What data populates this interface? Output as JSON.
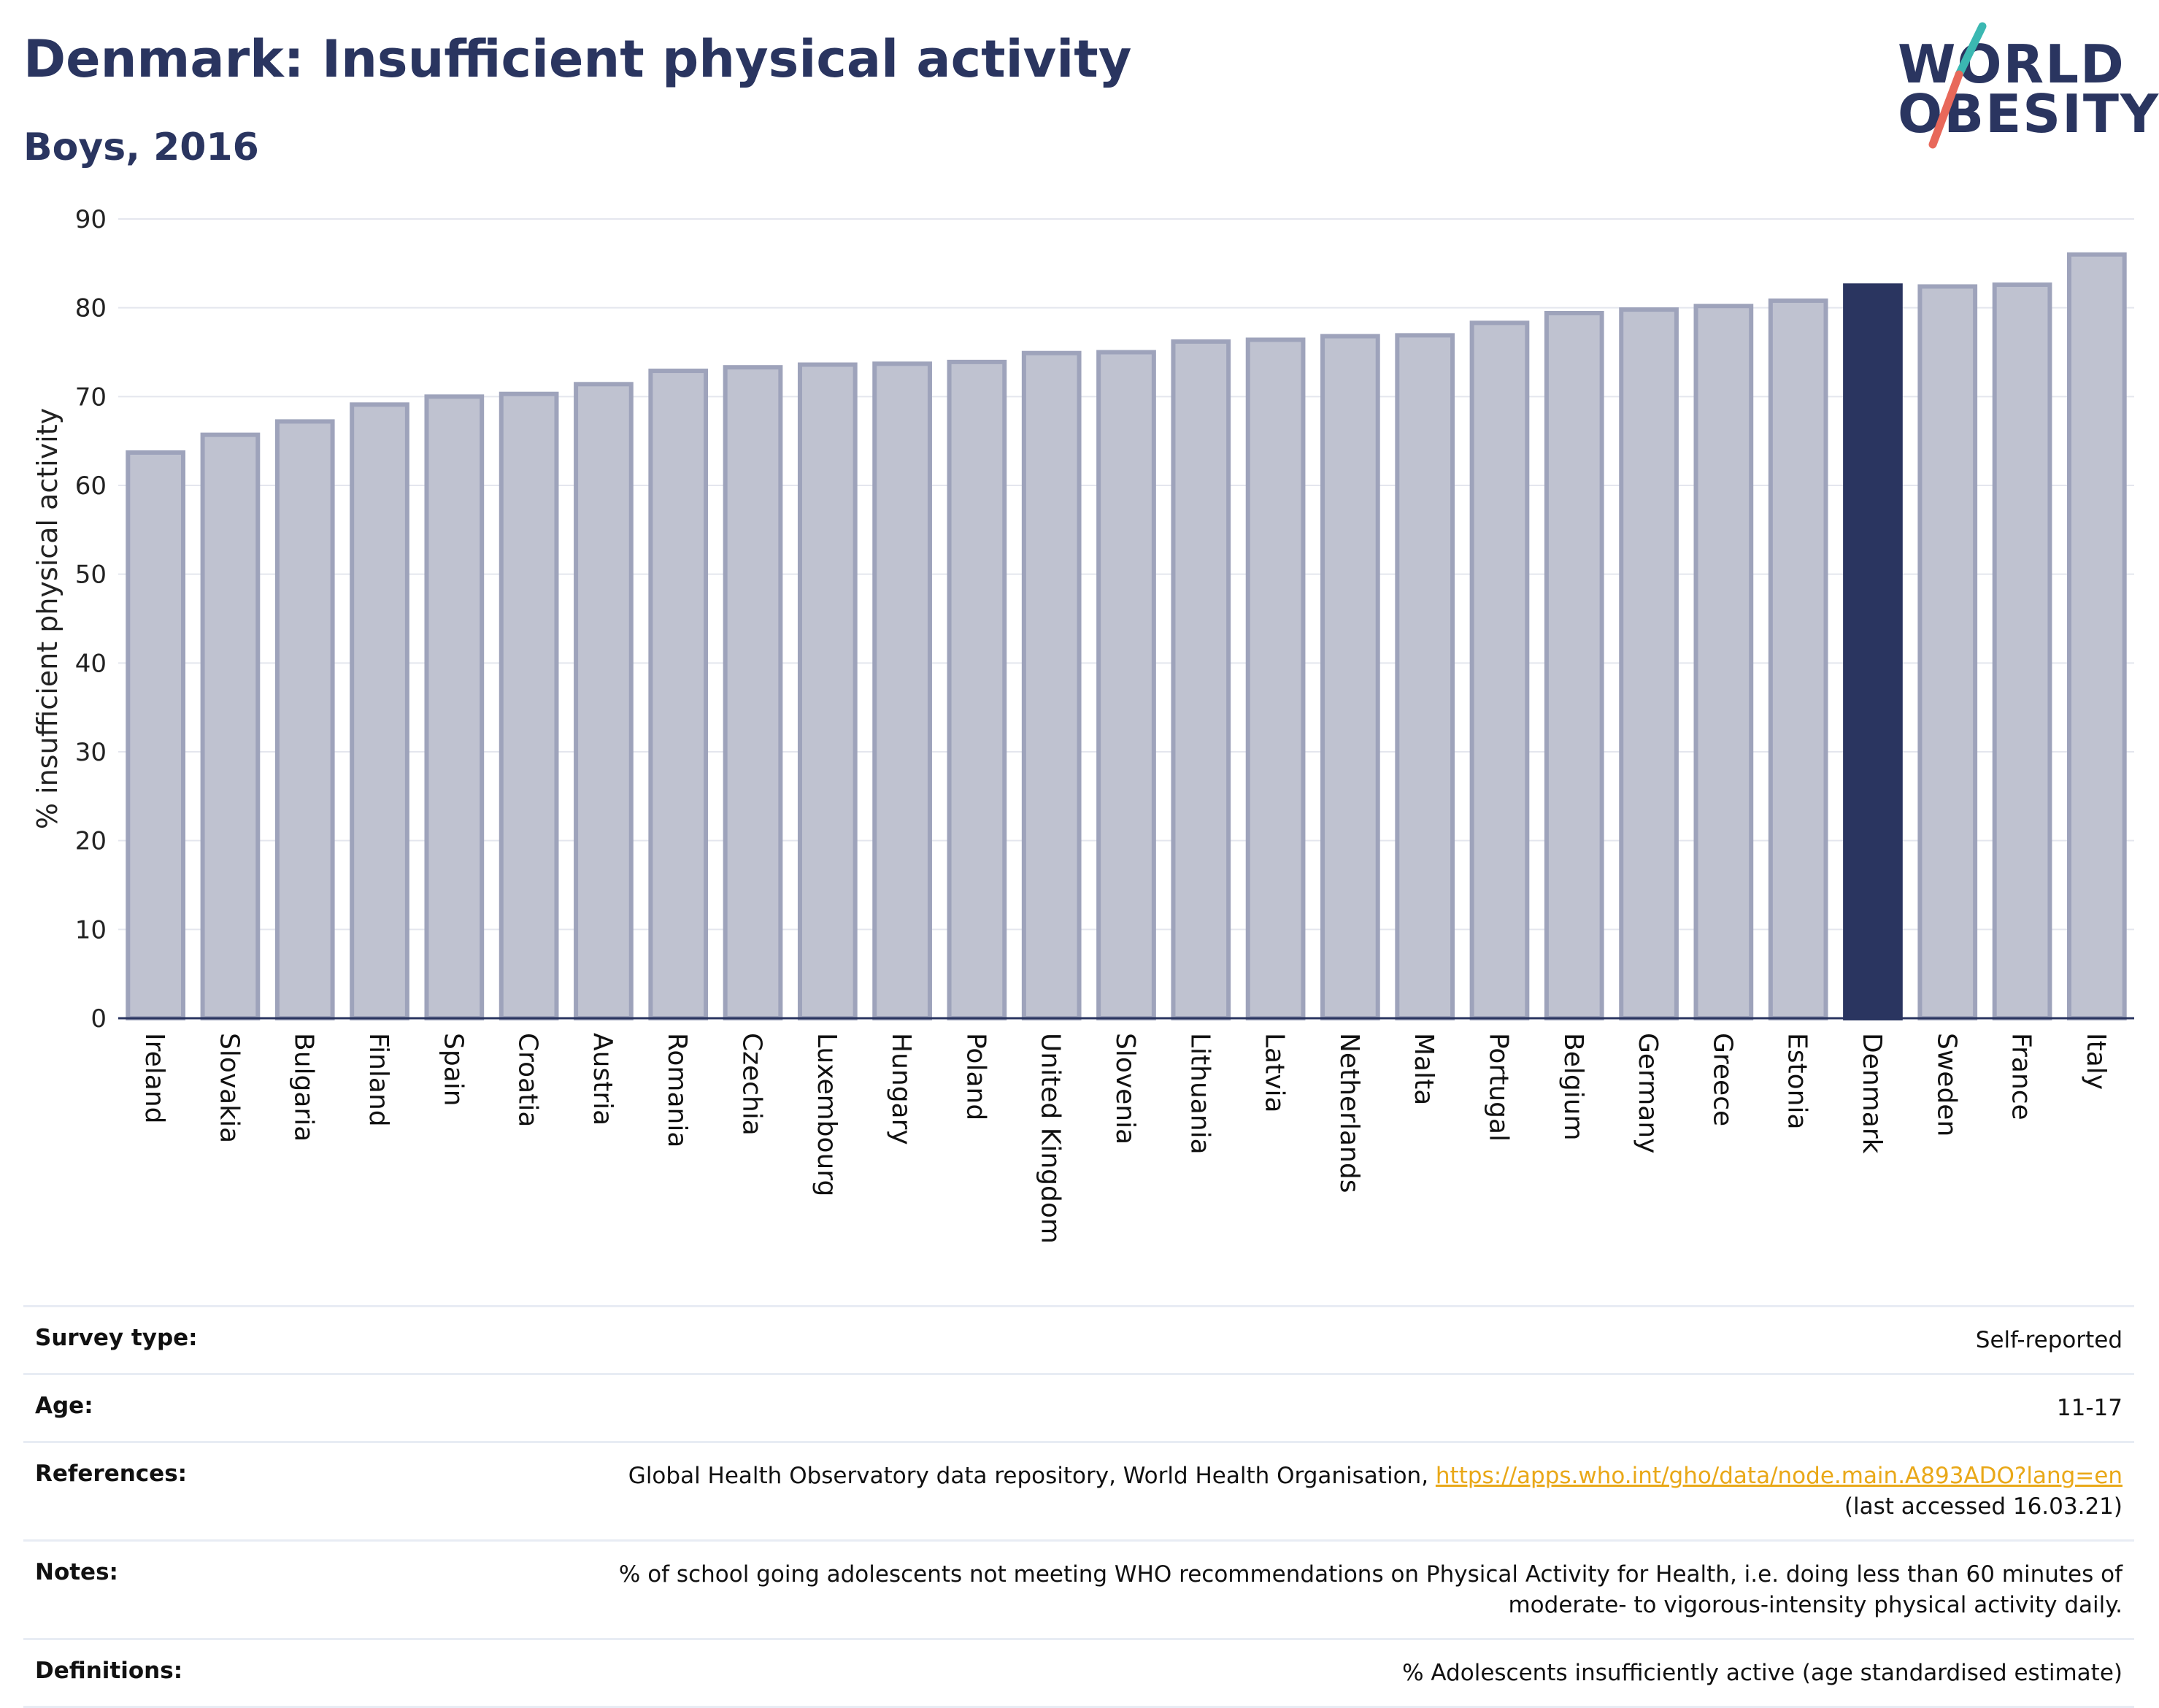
{
  "header": {
    "title": "Denmark: Insufficient physical activity",
    "subtitle": "Boys, 2016"
  },
  "logo": {
    "line1": "WORLD",
    "line2": "OBESITY"
  },
  "colors": {
    "bar_fill": "#bfc2d0",
    "bar_stroke": "#9ea3bb",
    "highlight": "#2a3560",
    "grid": "#e4e6ee",
    "text": "#2a3560",
    "link": "#e9a818",
    "logo_accent_teal": "#3bb8b2",
    "logo_accent_red": "#e8685a"
  },
  "chart_data": {
    "type": "bar",
    "title": "Denmark: Insufficient physical activity",
    "subtitle": "Boys, 2016",
    "xlabel": "",
    "ylabel": "% insufficient physical activity",
    "ylim": [
      0,
      90
    ],
    "yticks": [
      0,
      10,
      20,
      30,
      40,
      50,
      60,
      70,
      80,
      90
    ],
    "grid": true,
    "highlight": "Denmark",
    "categories": [
      "Ireland",
      "Slovakia",
      "Bulgaria",
      "Finland",
      "Spain",
      "Croatia",
      "Austria",
      "Romania",
      "Czechia",
      "Luxembourg",
      "Hungary",
      "Poland",
      "United Kingdom",
      "Slovenia",
      "Lithuania",
      "Latvia",
      "Netherlands",
      "Malta",
      "Portugal",
      "Belgium",
      "Germany",
      "Greece",
      "Estonia",
      "Denmark",
      "Sweden",
      "France",
      "Italy"
    ],
    "values": [
      63.7,
      65.7,
      67.2,
      69.1,
      70.0,
      70.3,
      71.4,
      72.9,
      73.3,
      73.6,
      73.7,
      73.9,
      74.9,
      75.0,
      76.2,
      76.4,
      76.8,
      76.9,
      78.3,
      79.4,
      79.8,
      80.2,
      80.8,
      82.5,
      82.4,
      82.6,
      86.0
    ]
  },
  "info": {
    "survey_type": {
      "label": "Survey type:",
      "value": "Self-reported"
    },
    "age": {
      "label": "Age:",
      "value": "11-17"
    },
    "references": {
      "label": "References:",
      "text": "Global Health Observatory data repository, World Health Organisation,",
      "link": "https://apps.who.int/gho/data/node.main.A893ADO?lang=en",
      "accessed": "(last accessed 16.03.21)"
    },
    "notes": {
      "label": "Notes:",
      "line1": "% of school going adolescents not meeting WHO recommendations on Physical Activity for Health, i.e. doing less than 60 minutes of",
      "line2": "moderate- to vigorous-intensity physical activity daily."
    },
    "definitions": {
      "label": "Definitions:",
      "value": "% Adolescents insufficiently active (age standardised estimate)"
    }
  }
}
